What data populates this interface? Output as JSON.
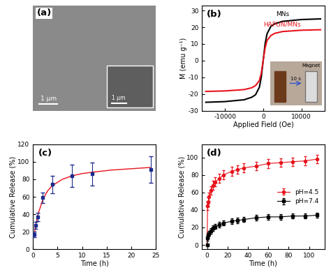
{
  "chart_data": [
    {
      "type": "image",
      "label": "(a)",
      "scale_bar": "1 µm",
      "inset_scale_bar": "1 µm"
    },
    {
      "type": "line",
      "label": "(b)",
      "x_label": "Applied Field (Oe)",
      "y_label": "M (emu g⁻¹)",
      "x": [
        -15000,
        -10000,
        -5000,
        -3000,
        -2000,
        -1000,
        -500,
        0,
        500,
        1000,
        2000,
        3000,
        5000,
        10000,
        15000
      ],
      "series": [
        {
          "name": "MNs",
          "color": "#000000",
          "values": [
            -25,
            -24.6,
            -23.5,
            -22,
            -20.5,
            -16,
            -10,
            0,
            10,
            16,
            20.5,
            22,
            23.5,
            24.6,
            25
          ]
        },
        {
          "name": "HAPUN/MNs",
          "color": "#e8141c",
          "values": [
            -18.5,
            -18.2,
            -17.4,
            -16.3,
            -15,
            -12,
            -7.5,
            0,
            7.5,
            12,
            15,
            16.3,
            17.4,
            18.2,
            18.5
          ]
        }
      ],
      "xlim": [
        -16000,
        16000
      ],
      "xticks": [
        -10000,
        0,
        10000
      ],
      "ylim": [
        -30,
        33
      ],
      "yticks": [
        -30,
        -20,
        -10,
        0,
        10,
        20,
        30
      ],
      "inset_texts": [
        "10 s",
        "Magnet"
      ]
    },
    {
      "type": "errorbar",
      "label": "(c)",
      "x_label": "Time (h)",
      "y_label": "Cumulative Release (%)",
      "x": [
        0.25,
        0.5,
        1,
        2,
        4,
        8,
        12,
        24
      ],
      "values": [
        17,
        27,
        37,
        59,
        74,
        84,
        86,
        91
      ],
      "errors": [
        3,
        4,
        5,
        6,
        10,
        13,
        13,
        15
      ],
      "color": "#1a2a8c",
      "marker": "square",
      "fit": {
        "color": "#e8141c",
        "x": [
          0.25,
          0.5,
          1,
          2,
          3,
          4,
          6,
          8,
          10,
          12,
          16,
          20,
          24
        ],
        "values": [
          17,
          27,
          40,
          57,
          67,
          73,
          80,
          84,
          86.5,
          88,
          90.5,
          92,
          93.5
        ]
      },
      "xlim": [
        0,
        25
      ],
      "xticks": [
        0,
        5,
        10,
        15,
        20,
        25
      ],
      "ylim": [
        0,
        120
      ],
      "yticks": [
        0,
        20,
        40,
        60,
        80,
        100,
        120
      ]
    },
    {
      "type": "line",
      "label": "(d)",
      "x_label": "Time (h)",
      "y_label": "Cumulative Release (%)",
      "legend": "center right",
      "series": [
        {
          "name": "pH=4.5",
          "color": "#e8141c",
          "marker": "circle",
          "x": [
            0,
            0.5,
            1,
            2,
            4,
            6,
            8,
            12,
            16,
            24,
            30,
            36,
            48,
            60,
            72,
            84,
            96,
            108
          ],
          "values": [
            0,
            45,
            49,
            55,
            62,
            68,
            72,
            76,
            80,
            84,
            86,
            88,
            90,
            93,
            94,
            95,
            96,
            98
          ],
          "errors": [
            0,
            5,
            5,
            5,
            5,
            5,
            5,
            5,
            5,
            5,
            5,
            5,
            5,
            5,
            5,
            5,
            5,
            5
          ]
        },
        {
          "name": "pH=7.4",
          "color": "#000000",
          "marker": "square",
          "x": [
            0,
            0.5,
            1,
            2,
            4,
            6,
            8,
            12,
            16,
            24,
            30,
            36,
            48,
            60,
            72,
            84,
            96,
            108
          ],
          "values": [
            0,
            8,
            11,
            13,
            16,
            19,
            21,
            23,
            25,
            27,
            28,
            29,
            31,
            32,
            32,
            33,
            33,
            34
          ],
          "errors": [
            0,
            3,
            3,
            3,
            3,
            3,
            3,
            3,
            3,
            3,
            3,
            3,
            3,
            3,
            3,
            3,
            3,
            3
          ]
        }
      ],
      "xlim": [
        -5,
        115
      ],
      "xticks": [
        0,
        20,
        40,
        60,
        80,
        100
      ],
      "ylim": [
        -5,
        115
      ],
      "yticks": [
        0,
        20,
        40,
        60,
        80,
        100
      ]
    }
  ]
}
